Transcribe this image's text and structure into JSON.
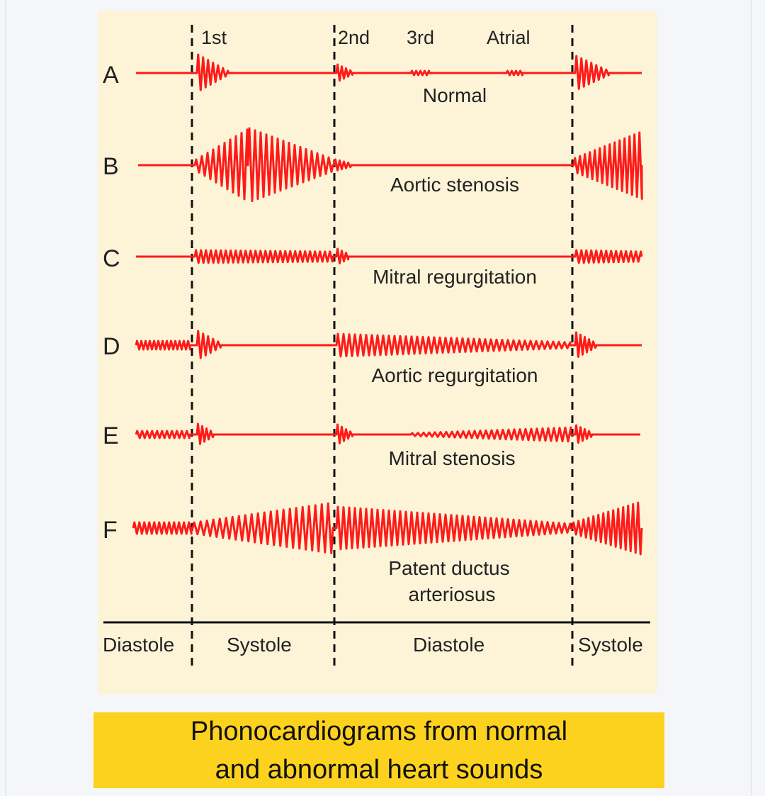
{
  "diagram": {
    "sound_labels": [
      "1st",
      "2nd",
      "3rd",
      "Atrial"
    ],
    "rows": [
      {
        "letter": "A",
        "name": "Normal"
      },
      {
        "letter": "B",
        "name": "Aortic stenosis"
      },
      {
        "letter": "C",
        "name": "Mitral regurgitation"
      },
      {
        "letter": "D",
        "name": "Aortic regurgitation"
      },
      {
        "letter": "E",
        "name": "Mitral stenosis"
      },
      {
        "letter": "F",
        "name": "Patent ductus",
        "name2": "arteriosus"
      }
    ],
    "phases": [
      "Diastole",
      "Systole",
      "Diastole",
      "Systole"
    ],
    "colors": {
      "trace": "#ff1a1a",
      "panel": "#fdf4d8",
      "caption_bg": "#fdd21f"
    }
  },
  "caption": {
    "line1": "Phonocardiograms from normal",
    "line2": "and abnormal heart sounds"
  }
}
